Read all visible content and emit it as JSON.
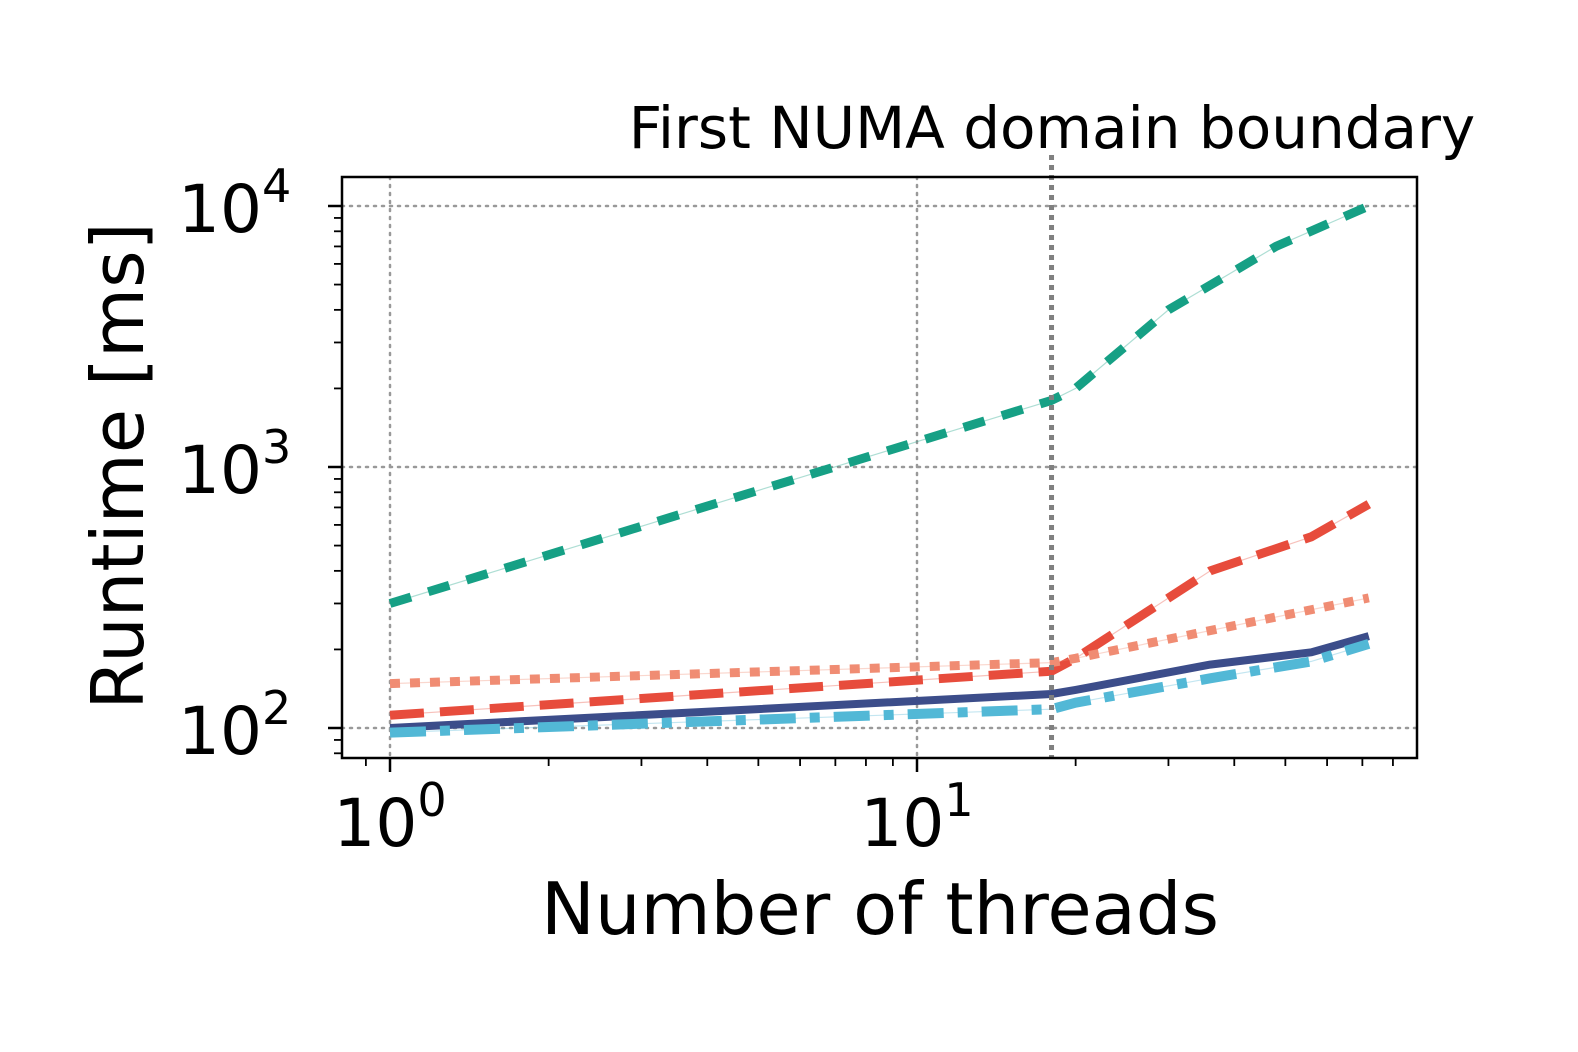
{
  "chart_data": {
    "type": "line",
    "title": "",
    "xlabel": "Number of threads",
    "ylabel": "Runtime [ms]",
    "xscale": "log",
    "yscale": "log",
    "xlim": [
      0.8,
      80
    ],
    "ylim": [
      80,
      13000
    ],
    "grid": true,
    "legend": "none",
    "x_ticks": [
      {
        "base": "10",
        "exp": "0",
        "value": 1
      },
      {
        "base": "10",
        "exp": "1",
        "value": 10
      }
    ],
    "y_ticks": [
      {
        "base": "10",
        "exp": "2",
        "value": 100
      },
      {
        "base": "10",
        "exp": "3",
        "value": 1000
      },
      {
        "base": "10",
        "exp": "4",
        "value": 10000
      }
    ],
    "annotations": [
      {
        "text": "First NUMA domain boundary",
        "x": 18
      }
    ],
    "series": [
      {
        "color": "#16a085",
        "style": "dashed-thick",
        "x": [
          1,
          18,
          20,
          30,
          48,
          72
        ],
        "y": [
          300,
          1800,
          2000,
          4000,
          7000,
          10000
        ]
      },
      {
        "color": "#e74c3c",
        "style": "long-dashed",
        "x": [
          1,
          18,
          20,
          36,
          56,
          72
        ],
        "y": [
          112,
          165,
          185,
          400,
          540,
          720
        ]
      },
      {
        "color": "#f08c73",
        "style": "dotted",
        "x": [
          1,
          18,
          20,
          72
        ],
        "y": [
          148,
          178,
          185,
          315
        ]
      },
      {
        "color": "#3c4d8a",
        "style": "solid",
        "x": [
          1,
          18,
          20,
          36,
          56,
          72
        ],
        "y": [
          100,
          135,
          140,
          175,
          195,
          225
        ]
      },
      {
        "color": "#52b8d6",
        "style": "dash-dot",
        "x": [
          1,
          18,
          20,
          36,
          56,
          72
        ],
        "y": [
          96,
          118,
          125,
          155,
          180,
          210
        ]
      }
    ]
  }
}
